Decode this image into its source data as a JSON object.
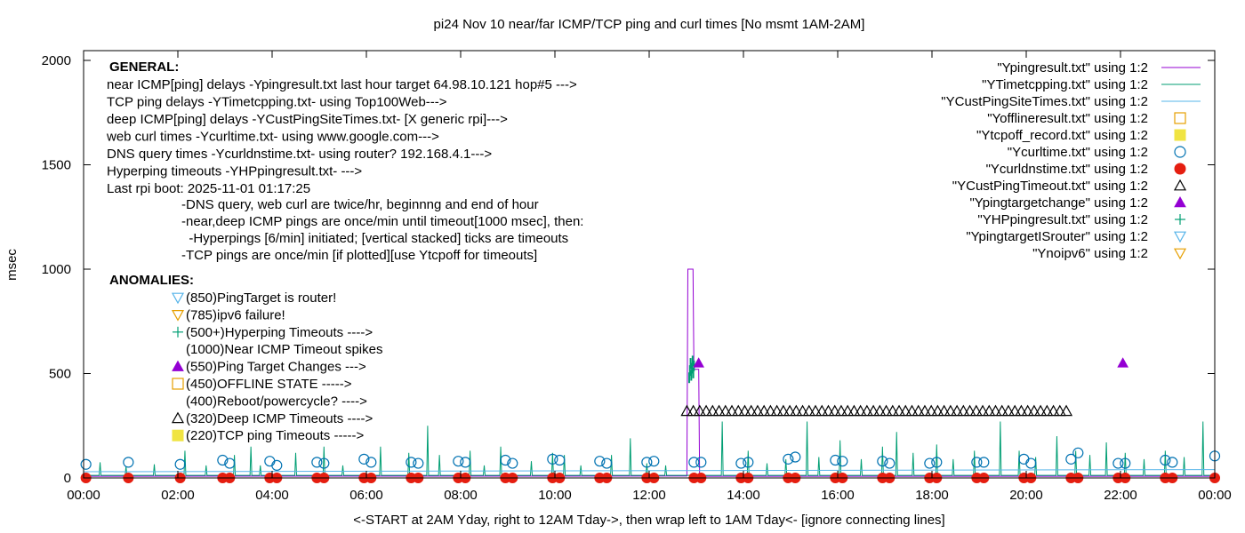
{
  "chart_data": {
    "type": "line",
    "title": "pi24 Nov 10  near/far ICMP/TCP ping and curl times [No msmt 1AM-2AM]",
    "xlabel": "<-START at 2AM Yday, right to 12AM Tday->, then wrap left to 1AM Tday<- [ignore connecting lines]",
    "ylabel": "msec",
    "xlim": [
      0,
      24
    ],
    "ylim": [
      0,
      2100
    ],
    "grid": false,
    "legend_position": "top-right",
    "x_ticks": [
      {
        "v": 0,
        "label": "00:00"
      },
      {
        "v": 2,
        "label": "02:00"
      },
      {
        "v": 4,
        "label": "04:00"
      },
      {
        "v": 6,
        "label": "06:00"
      },
      {
        "v": 8,
        "label": "08:00"
      },
      {
        "v": 10,
        "label": "10:00"
      },
      {
        "v": 12,
        "label": "12:00"
      },
      {
        "v": 14,
        "label": "14:00"
      },
      {
        "v": 16,
        "label": "16:00"
      },
      {
        "v": 18,
        "label": "18:00"
      },
      {
        "v": 20,
        "label": "20:00"
      },
      {
        "v": 22,
        "label": "22:00"
      },
      {
        "v": 24,
        "label": "00:00"
      }
    ],
    "y_ticks": [
      {
        "v": 0,
        "label": "0"
      },
      {
        "v": 500,
        "label": "500"
      },
      {
        "v": 1000,
        "label": "1000"
      },
      {
        "v": 1500,
        "label": "1500"
      },
      {
        "v": 2000,
        "label": "2000"
      }
    ],
    "legend": [
      {
        "label": "\"Ypingresult.txt\" using 1:2",
        "kind": "line",
        "color": "#9400d3"
      },
      {
        "label": "\"YTimetcpping.txt\" using 1:2",
        "kind": "line",
        "color": "#009e73"
      },
      {
        "label": "\"YCustPingSiteTimes.txt\" using 1:2",
        "kind": "line",
        "color": "#56b4e9"
      },
      {
        "label": "\"Yofflineresult.txt\" using 1:2",
        "kind": "open-square",
        "color": "#e69f00"
      },
      {
        "label": "\"Ytcpoff_record.txt\" using 1:2",
        "kind": "filled-square",
        "color": "#f0e442"
      },
      {
        "label": "\"Ycurltime.txt\" using 1:2",
        "kind": "open-circle",
        "color": "#0072b2"
      },
      {
        "label": "\"Ycurldnstime.txt\" using 1:2",
        "kind": "filled-circle",
        "color": "#e51e10"
      },
      {
        "label": "\"YCustPingTimeout.txt\" using 1:2",
        "kind": "open-triangle",
        "color": "#000000"
      },
      {
        "label": "\"Ypingtargetchange\" using 1:2",
        "kind": "filled-triangle",
        "color": "#9400d3"
      },
      {
        "label": "\"YHPpingresult.txt\" using 1:2",
        "kind": "plus",
        "color": "#009e73"
      },
      {
        "label": "\"YpingtargetISrouter\" using 1:2",
        "kind": "open-triangle-down",
        "color": "#56b4e9"
      },
      {
        "label": "\"Ynoipv6\" using 1:2",
        "kind": "open-triangle-down",
        "color": "#e69f00"
      }
    ],
    "general_heading": "GENERAL:",
    "general_lines": [
      "near ICMP[ping] delays -Ypingresult.txt last hour target 64.98.10.121 hop#5 --->",
      "TCP ping delays -YTimetcpping.txt- using Top100Web--->",
      "deep ICMP[ping] delays -YCustPingSiteTimes.txt- [X generic rpi]--->",
      "web curl times -Ycurltime.txt- using www.google.com--->",
      "DNS query times -Ycurldnstime.txt- using router? 192.168.4.1--->",
      "Hyperping timeouts -YHPpingresult.txt- --->",
      "Last rpi boot: 2025-11-01 01:17:25"
    ],
    "notes_lines": [
      "-DNS query, web curl are twice/hr, beginnng and end of hour",
      "-near,deep ICMP pings are once/min until timeout[1000 msec], then:",
      "  -Hyperpings [6/min] initiated; [vertical stacked] ticks are timeouts",
      "-TCP pings are once/min [if plotted][use Ytcpoff for timeouts]"
    ],
    "anomalies_heading": "ANOMALIES:",
    "anomalies": [
      {
        "symbol": "open-triangle-down",
        "color": "#56b4e9",
        "label": "(850)PingTarget is router!"
      },
      {
        "symbol": "open-triangle-down",
        "color": "#e69f00",
        "label": "(785)ipv6 failure!"
      },
      {
        "symbol": "plus",
        "color": "#009e73",
        "label": "(500+)Hyperping Timeouts ---->"
      },
      {
        "symbol": "none",
        "color": "#000000",
        "label": "(1000)Near ICMP Timeout spikes"
      },
      {
        "symbol": "filled-triangle",
        "color": "#9400d3",
        "label": "(550)Ping Target Changes --->"
      },
      {
        "symbol": "open-square",
        "color": "#e69f00",
        "label": "(450)OFFLINE STATE ----->"
      },
      {
        "symbol": "none",
        "color": "#000000",
        "label": "(400)Reboot/powercycle? ---->"
      },
      {
        "symbol": "open-triangle",
        "color": "#000000",
        "label": "(320)Deep ICMP Timeouts ---->"
      },
      {
        "symbol": "filled-square",
        "color": "#f0e442",
        "label": "(220)TCP ping Timeouts ----->"
      }
    ],
    "series": [
      {
        "name": "\"Ypingresult.txt\" using 1:2",
        "style": "line",
        "color": "#9400d3",
        "points": [
          [
            0,
            8
          ],
          [
            12.8,
            9
          ],
          [
            12.82,
            1000
          ],
          [
            12.93,
            1000
          ],
          [
            12.95,
            520
          ],
          [
            13.05,
            520
          ],
          [
            13.07,
            8
          ],
          [
            24,
            8
          ]
        ]
      },
      {
        "name": "\"YTimetcpping.txt\" using 1:2",
        "style": "line",
        "color": "#009e73",
        "baseline": 12,
        "spikes": [
          [
            0.35,
            75
          ],
          [
            0.9,
            55
          ],
          [
            1.5,
            65
          ],
          [
            2.15,
            130
          ],
          [
            2.6,
            60
          ],
          [
            3.2,
            110
          ],
          [
            3.55,
            150
          ],
          [
            3.75,
            60
          ],
          [
            4.5,
            120
          ],
          [
            5.1,
            150
          ],
          [
            5.5,
            60
          ],
          [
            6.3,
            150
          ],
          [
            6.9,
            120
          ],
          [
            7.3,
            250
          ],
          [
            7.55,
            110
          ],
          [
            8.2,
            130
          ],
          [
            8.5,
            60
          ],
          [
            8.85,
            150
          ],
          [
            9.5,
            80
          ],
          [
            9.95,
            120
          ],
          [
            10.2,
            110
          ],
          [
            10.55,
            60
          ],
          [
            11.2,
            110
          ],
          [
            11.6,
            190
          ],
          [
            11.95,
            70
          ],
          [
            12.35,
            60
          ],
          [
            13.55,
            270
          ],
          [
            14.1,
            130
          ],
          [
            14.5,
            70
          ],
          [
            14.9,
            90
          ],
          [
            15.35,
            270
          ],
          [
            15.6,
            100
          ],
          [
            16.05,
            180
          ],
          [
            16.5,
            90
          ],
          [
            16.95,
            150
          ],
          [
            17.25,
            220
          ],
          [
            17.6,
            120
          ],
          [
            18.1,
            160
          ],
          [
            18.45,
            90
          ],
          [
            18.9,
            130
          ],
          [
            19.45,
            270
          ],
          [
            19.85,
            130
          ],
          [
            20.2,
            100
          ],
          [
            20.65,
            200
          ],
          [
            21.05,
            130
          ],
          [
            21.35,
            110
          ],
          [
            21.7,
            170
          ],
          [
            22.1,
            120
          ],
          [
            22.5,
            90
          ],
          [
            22.95,
            130
          ],
          [
            23.35,
            100
          ],
          [
            23.75,
            270
          ]
        ],
        "tcp_cluster": {
          "x": [
            12.85,
            12.95
          ],
          "y": [
            480,
            560
          ]
        }
      },
      {
        "name": "\"YCustPingSiteTimes.txt\" using 1:2",
        "style": "line",
        "color": "#56b4e9",
        "points": [
          [
            0,
            30
          ],
          [
            24,
            40
          ]
        ]
      },
      {
        "name": "\"Ycurltime.txt\" using 1:2",
        "style": "open-circle",
        "color": "#0072b2",
        "points": [
          [
            0.05,
            65
          ],
          [
            0.95,
            75
          ],
          [
            2.05,
            65
          ],
          [
            2.95,
            85
          ],
          [
            3.1,
            70
          ],
          [
            3.95,
            80
          ],
          [
            4.1,
            60
          ],
          [
            4.95,
            75
          ],
          [
            5.1,
            70
          ],
          [
            5.95,
            90
          ],
          [
            6.1,
            75
          ],
          [
            6.95,
            75
          ],
          [
            7.1,
            70
          ],
          [
            7.95,
            80
          ],
          [
            8.1,
            75
          ],
          [
            8.95,
            85
          ],
          [
            9.1,
            70
          ],
          [
            9.95,
            90
          ],
          [
            10.1,
            85
          ],
          [
            10.95,
            80
          ],
          [
            11.1,
            70
          ],
          [
            11.95,
            75
          ],
          [
            12.1,
            80
          ],
          [
            12.95,
            75
          ],
          [
            13.1,
            75
          ],
          [
            13.95,
            70
          ],
          [
            14.1,
            75
          ],
          [
            14.95,
            90
          ],
          [
            15.1,
            100
          ],
          [
            15.95,
            85
          ],
          [
            16.1,
            80
          ],
          [
            16.95,
            80
          ],
          [
            17.1,
            70
          ],
          [
            17.95,
            70
          ],
          [
            18.1,
            75
          ],
          [
            18.95,
            75
          ],
          [
            19.1,
            75
          ],
          [
            19.95,
            90
          ],
          [
            20.1,
            70
          ],
          [
            20.95,
            90
          ],
          [
            21.1,
            120
          ],
          [
            21.95,
            70
          ],
          [
            22.1,
            70
          ],
          [
            22.95,
            85
          ],
          [
            23.1,
            75
          ],
          [
            24.0,
            105
          ]
        ]
      },
      {
        "name": "\"Ycurldnstime.txt\" using 1:2",
        "style": "filled-circle",
        "color": "#e51e10",
        "points": [
          [
            0.05,
            0
          ],
          [
            0.95,
            0
          ],
          [
            2.05,
            0
          ],
          [
            2.95,
            0
          ],
          [
            3.1,
            0
          ],
          [
            3.95,
            0
          ],
          [
            4.1,
            0
          ],
          [
            4.95,
            0
          ],
          [
            5.1,
            0
          ],
          [
            5.95,
            0
          ],
          [
            6.1,
            0
          ],
          [
            6.95,
            0
          ],
          [
            7.1,
            0
          ],
          [
            7.95,
            0
          ],
          [
            8.1,
            0
          ],
          [
            8.95,
            0
          ],
          [
            9.1,
            0
          ],
          [
            9.95,
            0
          ],
          [
            10.1,
            0
          ],
          [
            10.95,
            0
          ],
          [
            11.1,
            0
          ],
          [
            11.95,
            0
          ],
          [
            12.1,
            0
          ],
          [
            12.95,
            0
          ],
          [
            13.1,
            0
          ],
          [
            13.95,
            0
          ],
          [
            14.1,
            0
          ],
          [
            14.95,
            0
          ],
          [
            15.1,
            0
          ],
          [
            15.95,
            0
          ],
          [
            16.1,
            0
          ],
          [
            16.95,
            0
          ],
          [
            17.1,
            0
          ],
          [
            17.95,
            0
          ],
          [
            18.1,
            0
          ],
          [
            18.95,
            0
          ],
          [
            19.1,
            0
          ],
          [
            19.95,
            0
          ],
          [
            20.1,
            0
          ],
          [
            20.95,
            0
          ],
          [
            21.1,
            0
          ],
          [
            21.95,
            0
          ],
          [
            22.1,
            0
          ],
          [
            22.95,
            0
          ],
          [
            23.1,
            0
          ],
          [
            24.0,
            0
          ]
        ]
      },
      {
        "name": "\"YCustPingTimeout.txt\" using 1:2",
        "style": "open-triangle",
        "color": "#000000",
        "x_range": [
          12.8,
          20.85
        ],
        "y": 320,
        "count": 60
      },
      {
        "name": "\"Ypingtargetchange\" using 1:2",
        "style": "filled-triangle",
        "color": "#9400d3",
        "points": [
          [
            13.05,
            550
          ],
          [
            22.05,
            550
          ]
        ]
      }
    ]
  }
}
